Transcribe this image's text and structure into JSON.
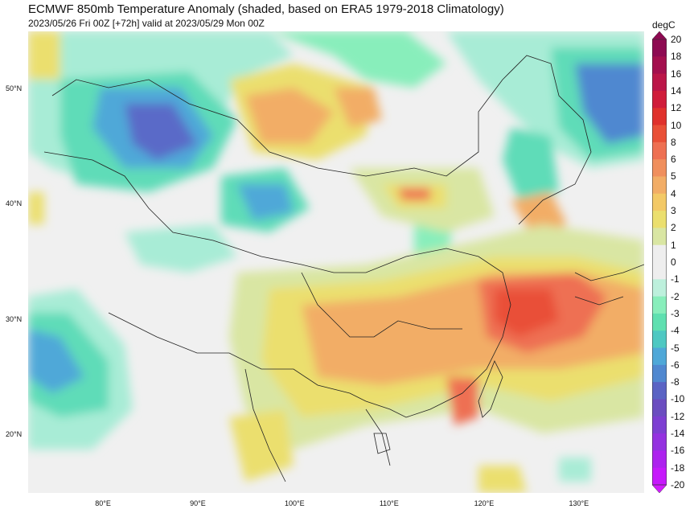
{
  "title": "ECMWF 850mb Temperature Anomaly (shaded, based on ERA5 1979-2018 Climatology)",
  "subtitle": "2023/05/26 Fri 00Z [+72h] valid at 2023/05/29 Mon 00Z",
  "map": {
    "lon_range": [
      72,
      137
    ],
    "lat_range": [
      15,
      55
    ],
    "lat_labels": [
      {
        "lat": 50,
        "label": "50°N"
      },
      {
        "lat": 40,
        "label": "40°N"
      },
      {
        "lat": 30,
        "label": "30°N"
      },
      {
        "lat": 20,
        "label": "20°N"
      }
    ],
    "lon_labels": [
      {
        "lon": 80,
        "label": "80°E"
      },
      {
        "lon": 90,
        "label": "90°E"
      },
      {
        "lon": 100,
        "label": "100°E"
      },
      {
        "lon": 110,
        "label": "110°E"
      },
      {
        "lon": 120,
        "label": "120°E"
      },
      {
        "lon": 130,
        "label": "130°E"
      }
    ]
  },
  "colorbar": {
    "unit": "degC",
    "ticks": [
      "20",
      "18",
      "16",
      "14",
      "12",
      "10",
      "8",
      "6",
      "5",
      "4",
      "3",
      "2",
      "1",
      "0",
      "-1",
      "-2",
      "-3",
      "-4",
      "-5",
      "-6",
      "-8",
      "-10",
      "-12",
      "-14",
      "-16",
      "-18",
      "-20"
    ],
    "colors": [
      "#8e0a52",
      "#a40f4e",
      "#bb1548",
      "#d01c3a",
      "#e0312c",
      "#e95037",
      "#ee7052",
      "#f08f5d",
      "#f2ad66",
      "#f3c966",
      "#ebdf6e",
      "#d9e6a3",
      "#eeeeee",
      "#eeeeee",
      "#bdf0dc",
      "#88eebb",
      "#5fe0b0",
      "#4ec8c2",
      "#4fa8d8",
      "#5088d0",
      "#5a63c4",
      "#6b4dc0",
      "#7d3fd2",
      "#9432e0",
      "#ad22ee",
      "#c619fb"
    ]
  }
}
